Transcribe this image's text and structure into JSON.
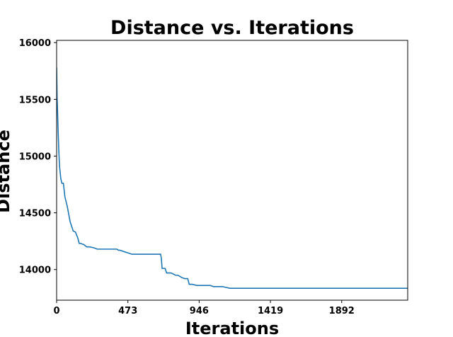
{
  "chart_data": {
    "type": "line",
    "title": "Distance vs. Iterations",
    "xlabel": "Iterations",
    "ylabel": "Distance",
    "xlim": [
      0,
      2330
    ],
    "ylim": [
      13730,
      16020
    ],
    "xticks": [
      0,
      473,
      946,
      1419,
      1892
    ],
    "yticks": [
      14000,
      14500,
      15000,
      15500,
      16000
    ],
    "grid": false,
    "legend": "none",
    "series_color": "#1f77b4",
    "series": [
      {
        "x": [
          0,
          3,
          6,
          10,
          15,
          20,
          28,
          35,
          45,
          55,
          70,
          90,
          100,
          110,
          125,
          140,
          150,
          160,
          180,
          200,
          220,
          250,
          270,
          300,
          360,
          400,
          410,
          420,
          500,
          550,
          600,
          640,
          660,
          680,
          690,
          695,
          700,
          720,
          730,
          760,
          790,
          805,
          830,
          850,
          870,
          880,
          900,
          930,
          960,
          1000,
          1020,
          1040,
          1080,
          1100,
          1150,
          1200,
          1300,
          1500,
          1800,
          2100,
          2330
        ],
        "y": [
          15780,
          15520,
          15400,
          15220,
          15030,
          14900,
          14800,
          14760,
          14760,
          14640,
          14560,
          14420,
          14380,
          14340,
          14330,
          14280,
          14230,
          14230,
          14220,
          14200,
          14200,
          14190,
          14180,
          14180,
          14180,
          14180,
          14170,
          14170,
          14135,
          14135,
          14135,
          14135,
          14135,
          14135,
          14135,
          14100,
          14010,
          14010,
          13970,
          13970,
          13950,
          13950,
          13930,
          13920,
          13920,
          13870,
          13870,
          13860,
          13860,
          13860,
          13860,
          13850,
          13850,
          13850,
          13835,
          13835,
          13835,
          13835,
          13835,
          13835,
          13835
        ]
      }
    ]
  }
}
